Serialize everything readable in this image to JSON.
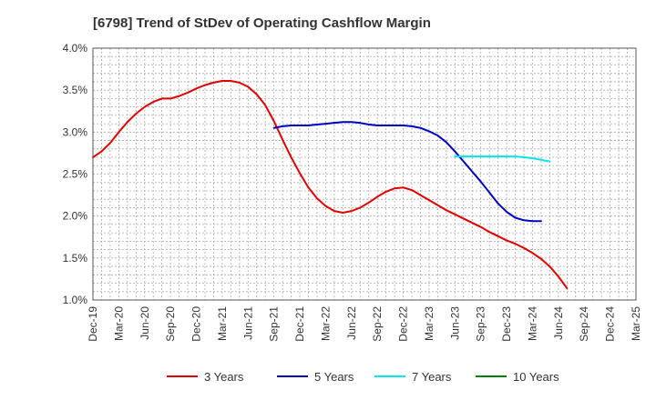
{
  "chart_data": {
    "type": "line",
    "title": "[6798]  Trend of StDev of Operating Cashflow Margin",
    "xlabel": "",
    "ylabel": "",
    "x_ticks": [
      "Dec-19",
      "Mar-20",
      "Jun-20",
      "Sep-20",
      "Dec-20",
      "Mar-21",
      "Jun-21",
      "Sep-21",
      "Dec-21",
      "Mar-22",
      "Jun-22",
      "Sep-22",
      "Dec-22",
      "Mar-23",
      "Jun-23",
      "Sep-23",
      "Dec-23",
      "Mar-24",
      "Jun-24",
      "Sep-24",
      "Dec-24",
      "Mar-25"
    ],
    "y_ticks": [
      "1.0%",
      "1.5%",
      "2.0%",
      "2.5%",
      "3.0%",
      "3.5%",
      "4.0%"
    ],
    "ylim": [
      1.0,
      4.0
    ],
    "grid": true,
    "legend_position": "bottom",
    "series": [
      {
        "name": "3 Years",
        "color": "#e00000",
        "points": [
          [
            "Dec-19",
            2.7
          ],
          [
            "Jan-20",
            2.77
          ],
          [
            "Feb-20",
            2.87
          ],
          [
            "Mar-20",
            3.0
          ],
          [
            "Apr-20",
            3.12
          ],
          [
            "May-20",
            3.22
          ],
          [
            "Jun-20",
            3.3
          ],
          [
            "Jul-20",
            3.36
          ],
          [
            "Aug-20",
            3.4
          ],
          [
            "Sep-20",
            3.4
          ],
          [
            "Oct-20",
            3.43
          ],
          [
            "Nov-20",
            3.47
          ],
          [
            "Dec-20",
            3.52
          ],
          [
            "Jan-21",
            3.56
          ],
          [
            "Feb-21",
            3.59
          ],
          [
            "Mar-21",
            3.61
          ],
          [
            "Apr-21",
            3.61
          ],
          [
            "May-21",
            3.59
          ],
          [
            "Jun-21",
            3.54
          ],
          [
            "Jul-21",
            3.45
          ],
          [
            "Aug-21",
            3.32
          ],
          [
            "Sep-21",
            3.13
          ],
          [
            "Oct-21",
            2.91
          ],
          [
            "Nov-21",
            2.7
          ],
          [
            "Dec-21",
            2.51
          ],
          [
            "Jan-22",
            2.34
          ],
          [
            "Feb-22",
            2.21
          ],
          [
            "Mar-22",
            2.12
          ],
          [
            "Apr-22",
            2.06
          ],
          [
            "May-22",
            2.04
          ],
          [
            "Jun-22",
            2.06
          ],
          [
            "Jul-22",
            2.1
          ],
          [
            "Aug-22",
            2.16
          ],
          [
            "Sep-22",
            2.23
          ],
          [
            "Oct-22",
            2.29
          ],
          [
            "Nov-22",
            2.33
          ],
          [
            "Dec-22",
            2.34
          ],
          [
            "Jan-23",
            2.31
          ],
          [
            "Feb-23",
            2.25
          ],
          [
            "Mar-23",
            2.19
          ],
          [
            "Apr-23",
            2.13
          ],
          [
            "May-23",
            2.07
          ],
          [
            "Jun-23",
            2.02
          ],
          [
            "Jul-23",
            1.97
          ],
          [
            "Aug-23",
            1.92
          ],
          [
            "Sep-23",
            1.87
          ],
          [
            "Oct-23",
            1.81
          ],
          [
            "Nov-23",
            1.76
          ],
          [
            "Dec-23",
            1.71
          ],
          [
            "Jan-24",
            1.67
          ],
          [
            "Feb-24",
            1.62
          ],
          [
            "Mar-24",
            1.56
          ],
          [
            "Apr-24",
            1.49
          ],
          [
            "May-24",
            1.4
          ],
          [
            "Jun-24",
            1.28
          ],
          [
            "Jul-24",
            1.14
          ]
        ]
      },
      {
        "name": "5 Years",
        "color": "#0000c0",
        "points": [
          [
            "Sep-21",
            3.05
          ],
          [
            "Oct-21",
            3.07
          ],
          [
            "Nov-21",
            3.08
          ],
          [
            "Dec-21",
            3.08
          ],
          [
            "Jan-22",
            3.08
          ],
          [
            "Feb-22",
            3.09
          ],
          [
            "Mar-22",
            3.1
          ],
          [
            "Apr-22",
            3.11
          ],
          [
            "May-22",
            3.12
          ],
          [
            "Jun-22",
            3.12
          ],
          [
            "Jul-22",
            3.11
          ],
          [
            "Aug-22",
            3.09
          ],
          [
            "Sep-22",
            3.08
          ],
          [
            "Oct-22",
            3.08
          ],
          [
            "Nov-22",
            3.08
          ],
          [
            "Dec-22",
            3.08
          ],
          [
            "Jan-23",
            3.07
          ],
          [
            "Feb-23",
            3.05
          ],
          [
            "Mar-23",
            3.01
          ],
          [
            "Apr-23",
            2.96
          ],
          [
            "May-23",
            2.88
          ],
          [
            "Jun-23",
            2.77
          ],
          [
            "Jul-23",
            2.65
          ],
          [
            "Aug-23",
            2.53
          ],
          [
            "Sep-23",
            2.41
          ],
          [
            "Oct-23",
            2.28
          ],
          [
            "Nov-23",
            2.15
          ],
          [
            "Dec-23",
            2.05
          ],
          [
            "Jan-24",
            1.98
          ],
          [
            "Feb-24",
            1.95
          ],
          [
            "Mar-24",
            1.94
          ],
          [
            "Apr-24",
            1.94
          ]
        ]
      },
      {
        "name": "7 Years",
        "color": "#00e5ee",
        "points": [
          [
            "Jun-23",
            2.71
          ],
          [
            "Jul-23",
            2.71
          ],
          [
            "Aug-23",
            2.71
          ],
          [
            "Sep-23",
            2.71
          ],
          [
            "Oct-23",
            2.71
          ],
          [
            "Nov-23",
            2.71
          ],
          [
            "Dec-23",
            2.71
          ],
          [
            "Jan-24",
            2.71
          ],
          [
            "Feb-24",
            2.7
          ],
          [
            "Mar-24",
            2.69
          ],
          [
            "Apr-24",
            2.67
          ],
          [
            "May-24",
            2.65
          ]
        ]
      },
      {
        "name": "10 Years",
        "color": "#008000",
        "points": []
      }
    ]
  }
}
